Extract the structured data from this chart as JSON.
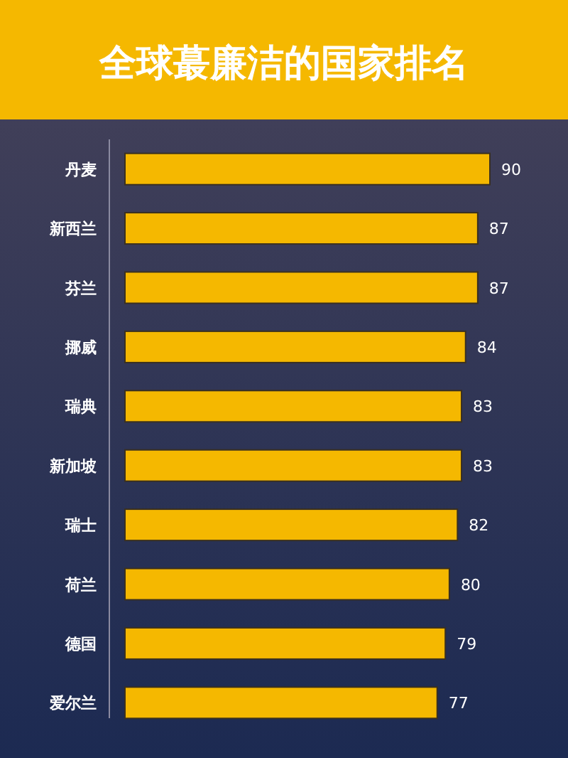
{
  "chart_data": {
    "type": "bar",
    "orientation": "horizontal",
    "title": "全球蕞廉洁的国家排名",
    "categories": [
      "丹麦",
      "新西兰",
      "芬兰",
      "挪威",
      "瑞典",
      "新加坡",
      "瑞士",
      "荷兰",
      "德国",
      "爱尔兰"
    ],
    "values": [
      90,
      87,
      87,
      84,
      83,
      83,
      82,
      80,
      79,
      77
    ],
    "color": "#f5b800",
    "data_labels": true
  }
}
